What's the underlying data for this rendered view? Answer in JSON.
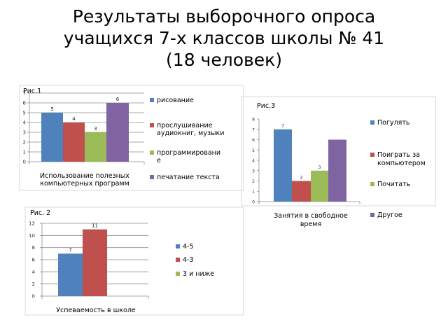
{
  "slide": {
    "title_lines": [
      "Результаты выборочного опроса",
      "учащихся 7-х классов школы № 41",
      "(18 человек)"
    ]
  },
  "chart_data": [
    {
      "type": "bar",
      "label": "Рис.1",
      "xlabel_lines": [
        "Использование полезных",
        "компьютерных программ"
      ],
      "ylim": [
        0,
        7
      ],
      "ticks": [
        0,
        1,
        2,
        3,
        4,
        5,
        6,
        7
      ],
      "series": [
        {
          "name_lines": [
            "рисование"
          ],
          "values": [
            5
          ],
          "color": "#4f81bd"
        },
        {
          "name_lines": [
            "прослушивание",
            "аудиокниг, музыки"
          ],
          "values": [
            4
          ],
          "color": "#c0504d"
        },
        {
          "name_lines": [
            "программировани",
            "е"
          ],
          "values": [
            3
          ],
          "color": "#9bbb59"
        },
        {
          "name_lines": [
            "печатание текста"
          ],
          "values": [
            6
          ],
          "color": "#8064a2"
        }
      ],
      "legend_position": "right",
      "grid": true
    },
    {
      "type": "bar",
      "label": "Рис.3",
      "xlabel_lines": [
        "Занятия в свободное",
        "время"
      ],
      "ylim": [
        0,
        8
      ],
      "ticks": [
        0,
        1,
        2,
        3,
        4,
        5,
        6,
        7,
        8
      ],
      "series": [
        {
          "name_lines": [
            "Погулять"
          ],
          "values": [
            7
          ],
          "color": "#4f81bd"
        },
        {
          "name_lines": [
            "Поиграть за",
            "компьютером"
          ],
          "values": [
            2
          ],
          "color": "#c0504d"
        },
        {
          "name_lines": [
            "Почитать"
          ],
          "values": [
            3
          ],
          "color": "#9bbb59"
        },
        {
          "name_lines": [
            "Другое"
          ],
          "values": [
            6
          ],
          "color": "#8064a2",
          "label_visible": false
        }
      ],
      "legend_position": "right",
      "grid": false
    },
    {
      "type": "bar",
      "label": "Рис. 2",
      "xlabel_lines": [
        "Успеваемость в школе"
      ],
      "ylim": [
        0,
        12
      ],
      "ticks": [
        0,
        2,
        4,
        6,
        8,
        10,
        12
      ],
      "series": [
        {
          "name_lines": [
            "4-5"
          ],
          "values": [
            7
          ],
          "color": "#4f81bd"
        },
        {
          "name_lines": [
            "4-3"
          ],
          "values": [
            11
          ],
          "color": "#c0504d"
        },
        {
          "name_lines": [
            "3 и ниже"
          ],
          "values": [
            0
          ],
          "color": "#9bbb59",
          "label_visible": false
        }
      ],
      "legend_position": "right",
      "grid": true
    }
  ]
}
